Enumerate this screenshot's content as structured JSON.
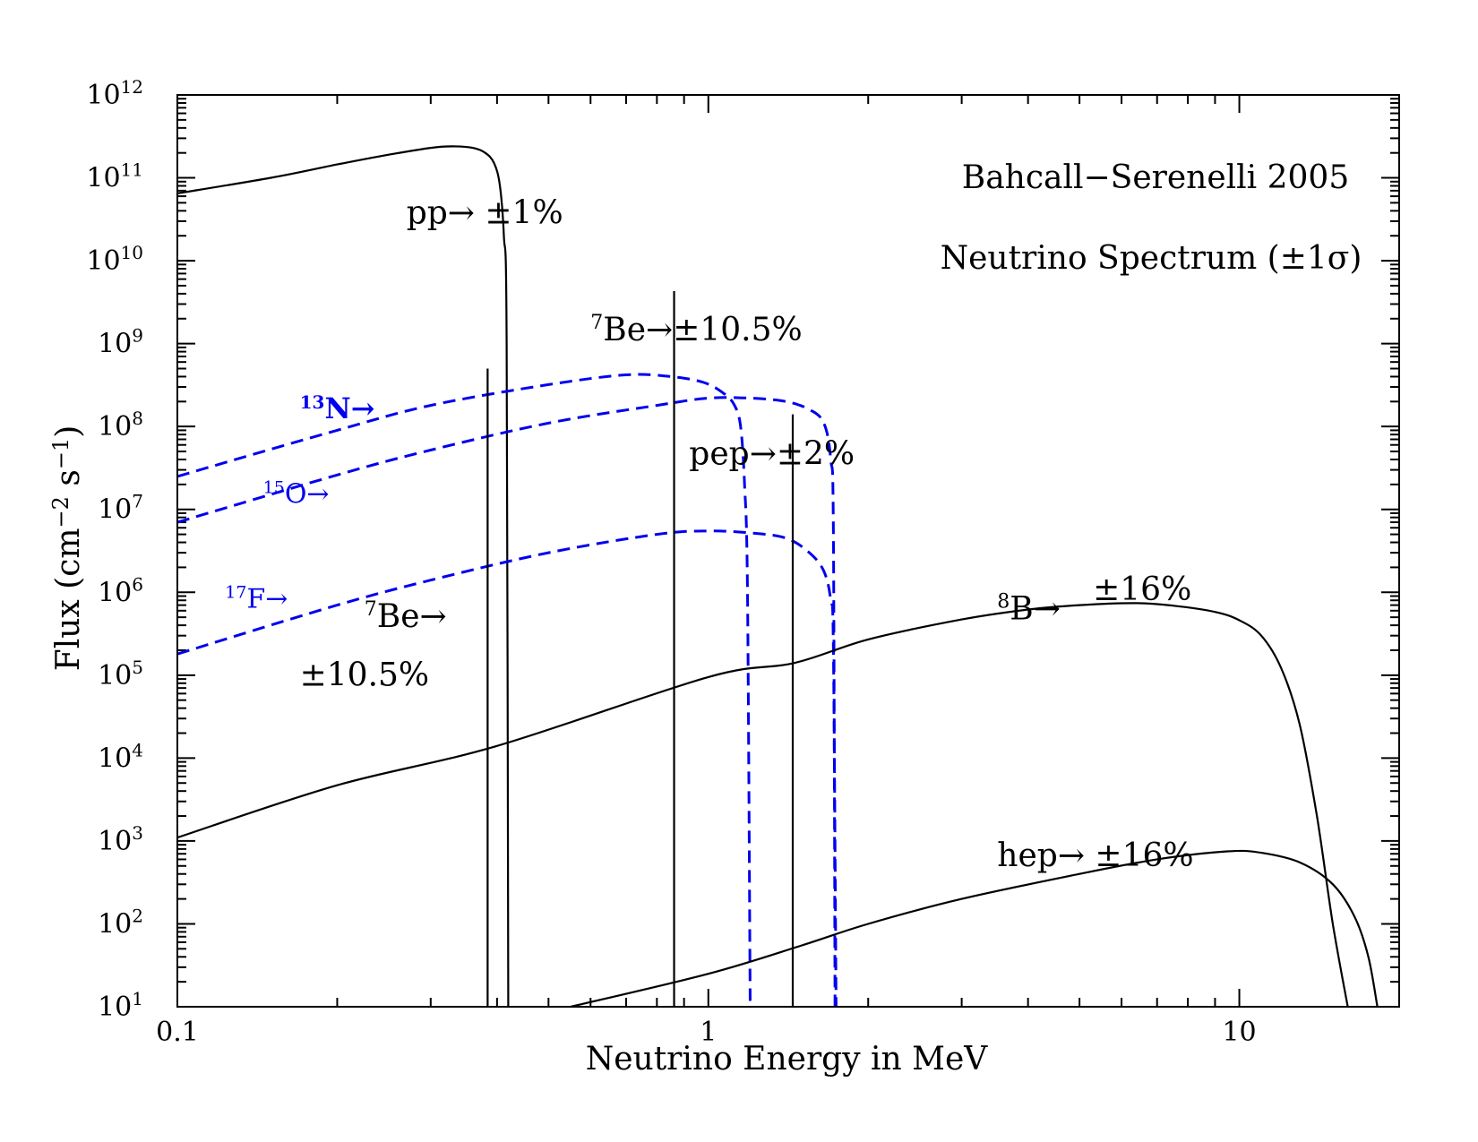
{
  "chart_data": {
    "type": "line",
    "title": "Bahcall−Serenelli 2005",
    "subtitle": "Neutrino Spectrum (±1σ)",
    "xlabel": "Neutrino Energy in MeV",
    "ylabel": {
      "prefix": "Flux (cm",
      "exp1": "−2",
      "mid": " s",
      "exp2": "−1",
      "suffix": ")"
    },
    "x_scale": "log",
    "y_scale": "log",
    "xlim": [
      0.1,
      20
    ],
    "ylim": [
      10,
      1000000000000.0
    ],
    "x_ticks": [
      {
        "value": 0.1,
        "label": "0.1"
      },
      {
        "value": 1,
        "label": "1"
      },
      {
        "value": 10,
        "label": "10"
      }
    ],
    "y_ticks": [
      {
        "value": 10.0,
        "base": "10",
        "exp": "1"
      },
      {
        "value": 100.0,
        "base": "10",
        "exp": "2"
      },
      {
        "value": 1000.0,
        "base": "10",
        "exp": "3"
      },
      {
        "value": 10000.0,
        "base": "10",
        "exp": "4"
      },
      {
        "value": 100000.0,
        "base": "10",
        "exp": "5"
      },
      {
        "value": 1000000.0,
        "base": "10",
        "exp": "6"
      },
      {
        "value": 10000000.0,
        "base": "10",
        "exp": "7"
      },
      {
        "value": 100000000.0,
        "base": "10",
        "exp": "8"
      },
      {
        "value": 1000000000.0,
        "base": "10",
        "exp": "9"
      },
      {
        "value": 10000000000.0,
        "base": "10",
        "exp": "10"
      },
      {
        "value": 100000000000.0,
        "base": "10",
        "exp": "11"
      },
      {
        "value": 1000000000000.0,
        "base": "10",
        "exp": "12"
      }
    ],
    "colors": {
      "pp_chain": "#000000",
      "cno": "#0000ee"
    },
    "series": [
      {
        "name": "pp",
        "style": "solid",
        "color": "#000000",
        "points": [
          [
            0.1,
            65000000000.0
          ],
          [
            0.15,
            100000000000.0
          ],
          [
            0.2,
            145000000000.0
          ],
          [
            0.25,
            190000000000.0
          ],
          [
            0.3,
            230000000000.0
          ],
          [
            0.33,
            240000000000.0
          ],
          [
            0.36,
            230000000000.0
          ],
          [
            0.38,
            200000000000.0
          ],
          [
            0.395,
            150000000000.0
          ],
          [
            0.405,
            80000000000.0
          ],
          [
            0.412,
            20000000000.0
          ],
          [
            0.417,
            1000000000.0
          ],
          [
            0.42,
            10
          ]
        ]
      },
      {
        "name": "13N",
        "style": "dashed",
        "color": "#0000ee",
        "points": [
          [
            0.1,
            25000000.0
          ],
          [
            0.2,
            90000000.0
          ],
          [
            0.3,
            180000000.0
          ],
          [
            0.5,
            320000000.0
          ],
          [
            0.7,
            420000000.0
          ],
          [
            0.85,
            400000000.0
          ],
          [
            0.98,
            340000000.0
          ],
          [
            1.07,
            250000000.0
          ],
          [
            1.12,
            180000000.0
          ],
          [
            1.15,
            100000000.0
          ],
          [
            1.17,
            20000000.0
          ],
          [
            1.185,
            1000000.0
          ],
          [
            1.199,
            10
          ]
        ]
      },
      {
        "name": "15O",
        "style": "dashed",
        "color": "#0000ee",
        "points": [
          [
            0.1,
            7000000.0
          ],
          [
            0.2,
            26000000.0
          ],
          [
            0.3,
            52000000.0
          ],
          [
            0.5,
            110000000.0
          ],
          [
            0.8,
            180000000.0
          ],
          [
            1.0,
            220000000.0
          ],
          [
            1.2,
            220000000.0
          ],
          [
            1.4,
            200000000.0
          ],
          [
            1.55,
            160000000.0
          ],
          [
            1.65,
            110000000.0
          ],
          [
            1.7,
            40000000.0
          ],
          [
            1.72,
            5000000.0
          ],
          [
            1.732,
            10
          ]
        ]
      },
      {
        "name": "17F",
        "style": "dashed",
        "color": "#0000ee",
        "points": [
          [
            0.1,
            180000.0
          ],
          [
            0.2,
            700000.0
          ],
          [
            0.3,
            1400000.0
          ],
          [
            0.5,
            3000000.0
          ],
          [
            0.8,
            5000000.0
          ],
          [
            1.0,
            5500000.0
          ],
          [
            1.2,
            5200000.0
          ],
          [
            1.4,
            4500000.0
          ],
          [
            1.55,
            3000000.0
          ],
          [
            1.65,
            1800000.0
          ],
          [
            1.7,
            800000.0
          ],
          [
            1.72,
            200000.0
          ],
          [
            1.74,
            10
          ]
        ]
      },
      {
        "name": "8B",
        "style": "solid",
        "color": "#000000",
        "points": [
          [
            0.1,
            1100.0
          ],
          [
            0.2,
            4700.0
          ],
          [
            0.4,
            14000.0
          ],
          [
            1.0,
            95000.0
          ],
          [
            1.45,
            140000.0
          ],
          [
            2.0,
            270000.0
          ],
          [
            3.0,
            470000.0
          ],
          [
            4.0,
            620000.0
          ],
          [
            5.0,
            700000.0
          ],
          [
            6.4,
            740000.0
          ],
          [
            7.5,
            690000.0
          ],
          [
            9.0,
            580000.0
          ],
          [
            10.0,
            460000.0
          ],
          [
            11.0,
            300000.0
          ],
          [
            12.0,
            120000.0
          ],
          [
            13.0,
            25000.0
          ],
          [
            14.0,
            2000.0
          ],
          [
            15.0,
            100.0
          ],
          [
            16.0,
            10
          ]
        ]
      },
      {
        "name": "hep",
        "style": "solid",
        "color": "#000000",
        "points": [
          [
            0.55,
            10
          ],
          [
            1.0,
            25
          ],
          [
            1.5,
            55
          ],
          [
            2.0,
            100
          ],
          [
            3.0,
            200
          ],
          [
            5.0,
            400
          ],
          [
            7.0,
            600
          ],
          [
            9.5,
            750
          ],
          [
            11.0,
            720
          ],
          [
            13.0,
            550
          ],
          [
            15.0,
            300
          ],
          [
            16.5,
            120
          ],
          [
            17.5,
            40
          ],
          [
            18.2,
            10
          ]
        ]
      }
    ],
    "lines": [
      {
        "name": "7Be-0.384",
        "x": 0.384,
        "y": 500000000.0,
        "color": "#000000"
      },
      {
        "name": "7Be-0.862",
        "x": 0.862,
        "y": 4300000000.0,
        "color": "#000000"
      },
      {
        "name": "pep-1.442",
        "x": 1.442,
        "y": 140000000.0,
        "color": "#000000"
      }
    ],
    "annotations": [
      {
        "id": "pp",
        "type": "plain",
        "main": "pp→",
        "tail": " ±1%",
        "x": 0.27,
        "y": 28000000000.0,
        "size": 36
      },
      {
        "id": "be7-high",
        "type": "sup",
        "sup": "7",
        "main": "Be→",
        "tail": "±10.5%",
        "x": 0.6,
        "y": 1100000000.0,
        "size": 36
      },
      {
        "id": "pep",
        "type": "plain",
        "main": "pep→",
        "tail": "±2%",
        "x": 0.92,
        "y": 35000000.0,
        "size": 36
      },
      {
        "id": "n13",
        "type": "sup",
        "sup": "13",
        "main": "N→",
        "x": 0.17,
        "y": 125000000.0,
        "size": 32,
        "color": "#0000ee",
        "bold": true
      },
      {
        "id": "o15",
        "type": "sup",
        "sup": "15",
        "main": "O→",
        "x": 0.145,
        "y": 12000000.0,
        "size": 30,
        "color": "#0000ee"
      },
      {
        "id": "f17",
        "type": "sup",
        "sup": "17",
        "main": "F→",
        "x": 0.123,
        "y": 650000.0,
        "size": 30,
        "color": "#0000ee"
      },
      {
        "id": "be7-low",
        "type": "sup",
        "sup": "7",
        "main": "Be→",
        "x": 0.225,
        "y": 380000.0,
        "size": 36
      },
      {
        "id": "be7-low-unc",
        "type": "plain",
        "main": "±10.5%",
        "x": 0.17,
        "y": 75000.0,
        "size": 36
      },
      {
        "id": "b8",
        "type": "sup",
        "sup": "8",
        "main": "B→",
        "x": 3.5,
        "y": 470000.0,
        "size": 36
      },
      {
        "id": "b8-unc",
        "type": "plain",
        "main": "±16%",
        "x": 5.3,
        "y": 800000.0,
        "size": 36
      },
      {
        "id": "hep",
        "type": "plain",
        "main": "hep→",
        "tail": " ±16%",
        "x": 3.5,
        "y": 500.0,
        "size": 36
      }
    ]
  }
}
